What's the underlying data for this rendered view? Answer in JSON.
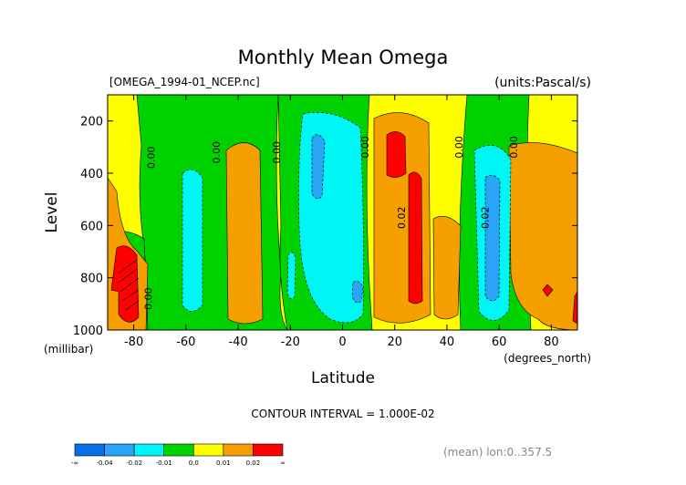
{
  "chart_data": {
    "type": "heatmap",
    "title": "Monthly Mean Omega",
    "file_label": "[OMEGA_1994-01_NCEP.nc]",
    "units_label": "(units:Pascal/s)",
    "xlabel": "Latitude",
    "x_unit": "(degrees_north)",
    "ylabel": "Level",
    "y_unit": "(millibar)",
    "xlim": [
      -90,
      90
    ],
    "ylim": [
      1000,
      100
    ],
    "x_ticks": [
      -80,
      -60,
      -40,
      -20,
      0,
      20,
      40,
      60,
      80
    ],
    "y_ticks": [
      200,
      400,
      600,
      800,
      1000
    ],
    "x_tick_labels": [
      "-80",
      "-60",
      "-40",
      "-20",
      "0",
      "20",
      "40",
      "60",
      "80"
    ],
    "y_tick_labels": [
      "200",
      "400",
      "600",
      "800",
      "1000"
    ],
    "contour_interval_text": "CONTOUR INTERVAL = 1.000E-02",
    "mean_note": "(mean) lon:0..357.5",
    "contour_labels": [
      {
        "text": "0.00",
        "x": -72,
        "y": 340
      },
      {
        "text": "0.00",
        "x": -47,
        "y": 320
      },
      {
        "text": "0.00",
        "x": -24,
        "y": 320
      },
      {
        "text": "0.00",
        "x": 10,
        "y": 300
      },
      {
        "text": "0.02",
        "x": 24,
        "y": 570
      },
      {
        "text": "0.00",
        "x": 46,
        "y": 300
      },
      {
        "text": "0.02",
        "x": 56,
        "y": 570
      },
      {
        "text": "0.00",
        "x": 67,
        "y": 300
      },
      {
        "text": "0.00",
        "x": -73,
        "y": 880
      }
    ],
    "colorbar": {
      "colors": [
        "#0a6ee6",
        "#2aa5f5",
        "#00f5f5",
        "#00d200",
        "#ffff00",
        "#f5a000",
        "#ff0000"
      ],
      "labels": [
        "-∞",
        "-0.04",
        "-0.02",
        "-0.01",
        "0.0",
        "0.01",
        "0.02",
        "∞"
      ]
    }
  }
}
